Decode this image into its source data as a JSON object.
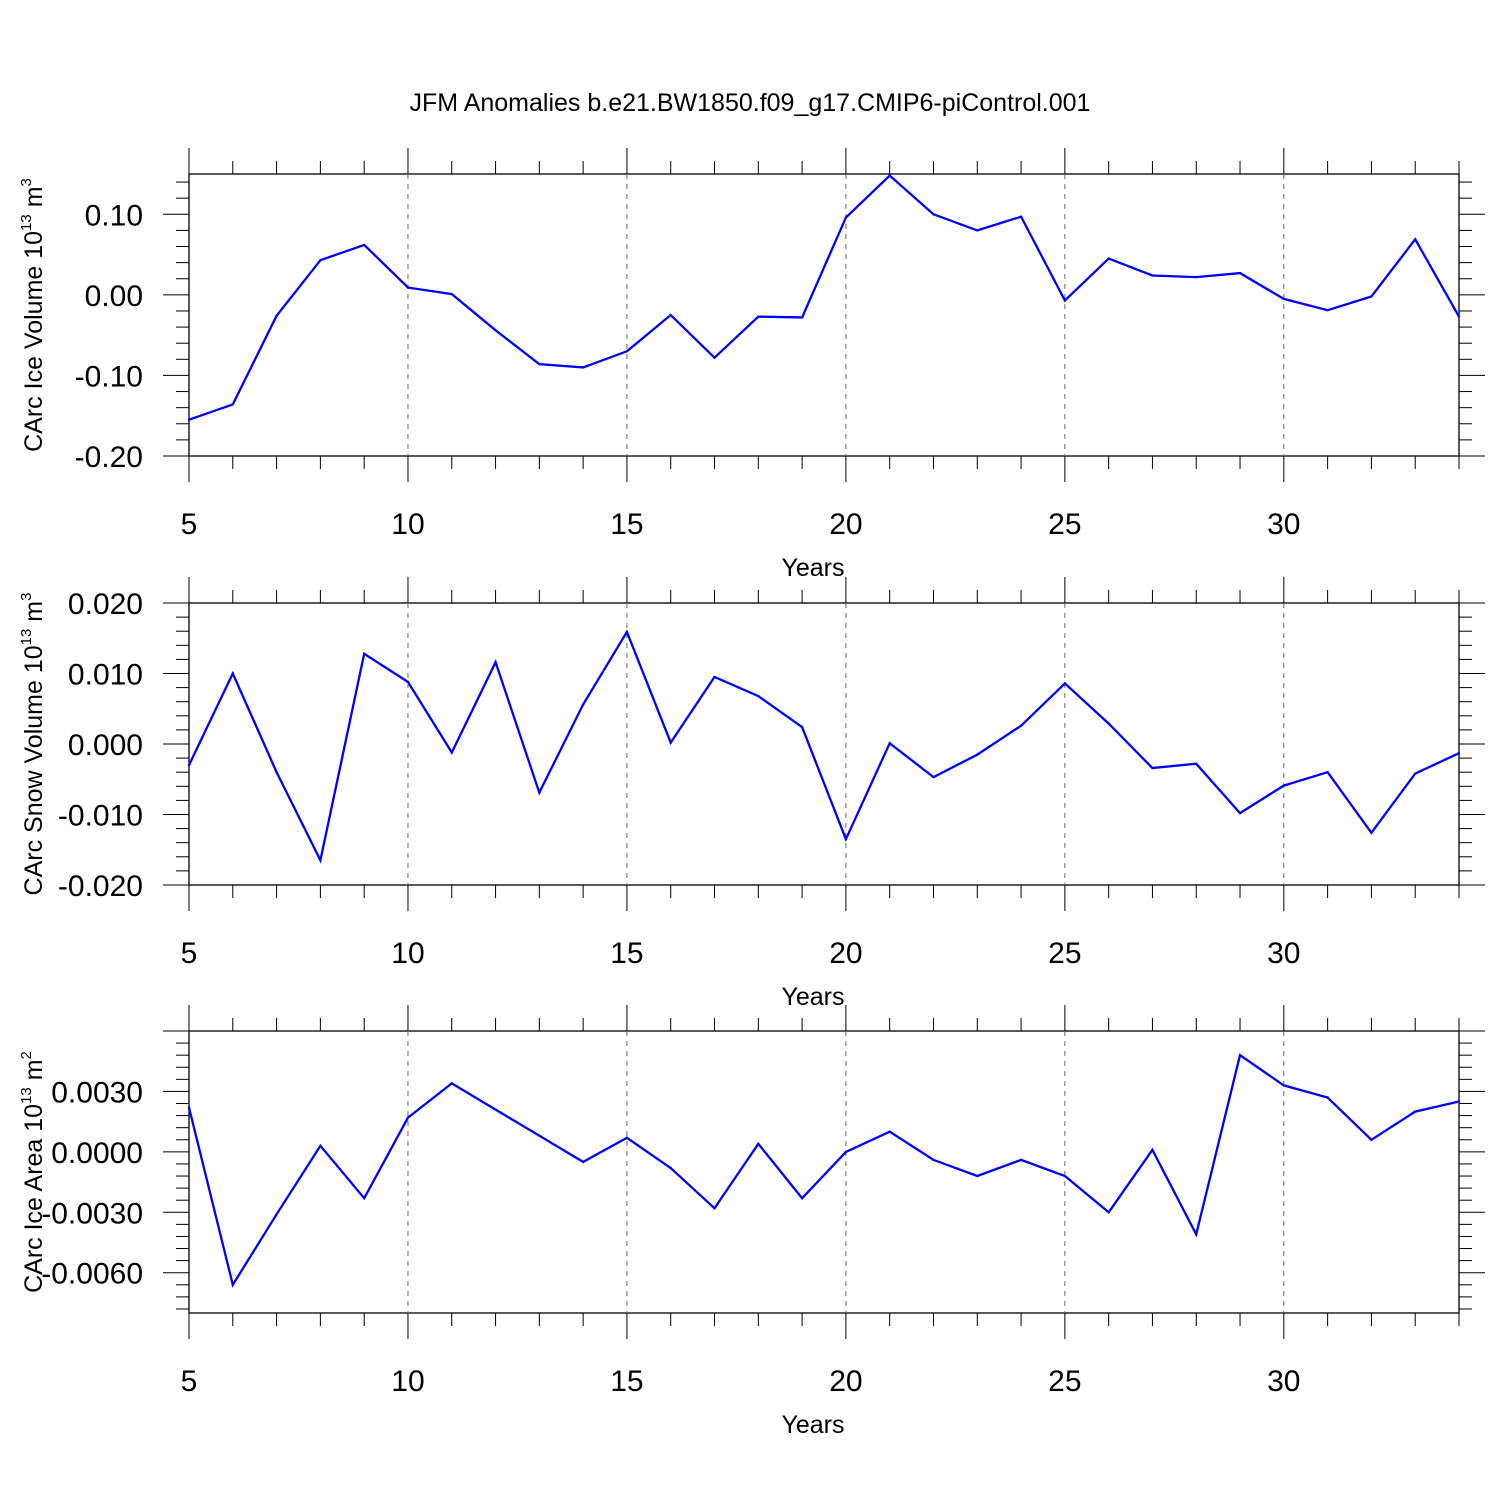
{
  "title": "JFM Anomalies b.e21.BW1850.f09_g17.CMIP6-piControl.001",
  "line_color": "#0000ff",
  "chart_data": [
    {
      "type": "line",
      "ylabel": "CArc Ice Volume 10",
      "ylabel_exp": "13",
      "ylabel_unit": " m",
      "ylabel_unit_exp": "3",
      "xlabel": "Years",
      "xlim": [
        5,
        34
      ],
      "ylim": [
        -0.2,
        0.15
      ],
      "xticks": [
        "5",
        "10",
        "15",
        "20",
        "25",
        "30"
      ],
      "yticks": [
        "0.10",
        "0.00",
        "-0.10",
        "-0.20"
      ],
      "x": [
        5,
        6,
        7,
        8,
        9,
        10,
        11,
        12,
        13,
        14,
        15,
        16,
        17,
        18,
        19,
        20,
        21,
        22,
        23,
        24,
        25,
        26,
        27,
        28,
        29,
        30,
        31,
        32,
        33,
        34
      ],
      "values": [
        -0.155,
        -0.136,
        -0.026,
        0.043,
        0.062,
        0.009,
        0.001,
        -0.044,
        -0.086,
        -0.09,
        -0.07,
        -0.025,
        -0.078,
        -0.027,
        -0.028,
        0.096,
        0.148,
        0.1,
        0.08,
        0.097,
        -0.007,
        0.045,
        0.024,
        0.022,
        0.027,
        -0.005,
        -0.019,
        -0.002,
        0.069,
        -0.027
      ]
    },
    {
      "type": "line",
      "ylabel": "CArc Snow Volume 10",
      "ylabel_exp": "13",
      "ylabel_unit": " m",
      "ylabel_unit_exp": "3",
      "xlabel": "Years",
      "xlim": [
        5,
        34
      ],
      "ylim": [
        -0.02,
        0.02
      ],
      "xticks": [
        "5",
        "10",
        "15",
        "20",
        "25",
        "30"
      ],
      "yticks": [
        "0.020",
        "0.010",
        "0.000",
        "-0.010",
        "-0.020"
      ],
      "x": [
        5,
        6,
        7,
        8,
        9,
        10,
        11,
        12,
        13,
        14,
        15,
        16,
        17,
        18,
        19,
        20,
        21,
        22,
        23,
        24,
        25,
        26,
        27,
        28,
        29,
        30,
        31,
        32,
        33,
        34
      ],
      "values": [
        -0.003,
        0.01,
        -0.004,
        -0.0165,
        0.0128,
        0.0088,
        -0.0012,
        0.0116,
        -0.0069,
        0.0056,
        0.0159,
        0.0002,
        0.0095,
        0.0068,
        0.0024,
        -0.0135,
        0.0001,
        -0.0047,
        -0.0015,
        0.0026,
        0.0086,
        0.0029,
        -0.0034,
        -0.0028,
        -0.0098,
        -0.0059,
        -0.004,
        -0.0126,
        -0.0042,
        -0.0013
      ]
    },
    {
      "type": "line",
      "ylabel": "CArc Ice Area 10",
      "ylabel_exp": "13",
      "ylabel_unit": " m",
      "ylabel_unit_exp": "2",
      "xlabel": "Years",
      "xlim": [
        5,
        34
      ],
      "ylim": [
        -0.008,
        0.006
      ],
      "xticks": [
        "5",
        "10",
        "15",
        "20",
        "25",
        "30"
      ],
      "yticks": [
        "0.0030",
        "0.0000",
        "-0.0030",
        "-0.0060"
      ],
      "x": [
        5,
        6,
        7,
        8,
        9,
        10,
        11,
        12,
        13,
        14,
        15,
        16,
        17,
        18,
        19,
        20,
        21,
        22,
        23,
        24,
        25,
        26,
        27,
        28,
        29,
        30,
        31,
        32,
        33,
        34
      ],
      "values": [
        0.0022,
        -0.0066,
        -0.0031,
        0.0003,
        -0.0023,
        0.0017,
        0.0034,
        0.0021,
        0.0008,
        -0.0005,
        0.0007,
        -0.0008,
        -0.0028,
        0.0004,
        -0.0023,
        0.0,
        0.001,
        -0.0004,
        -0.0012,
        -0.0004,
        -0.0012,
        -0.003,
        0.0001,
        -0.0041,
        0.0048,
        0.0033,
        0.0027,
        0.0006,
        0.002,
        0.0025
      ]
    }
  ]
}
